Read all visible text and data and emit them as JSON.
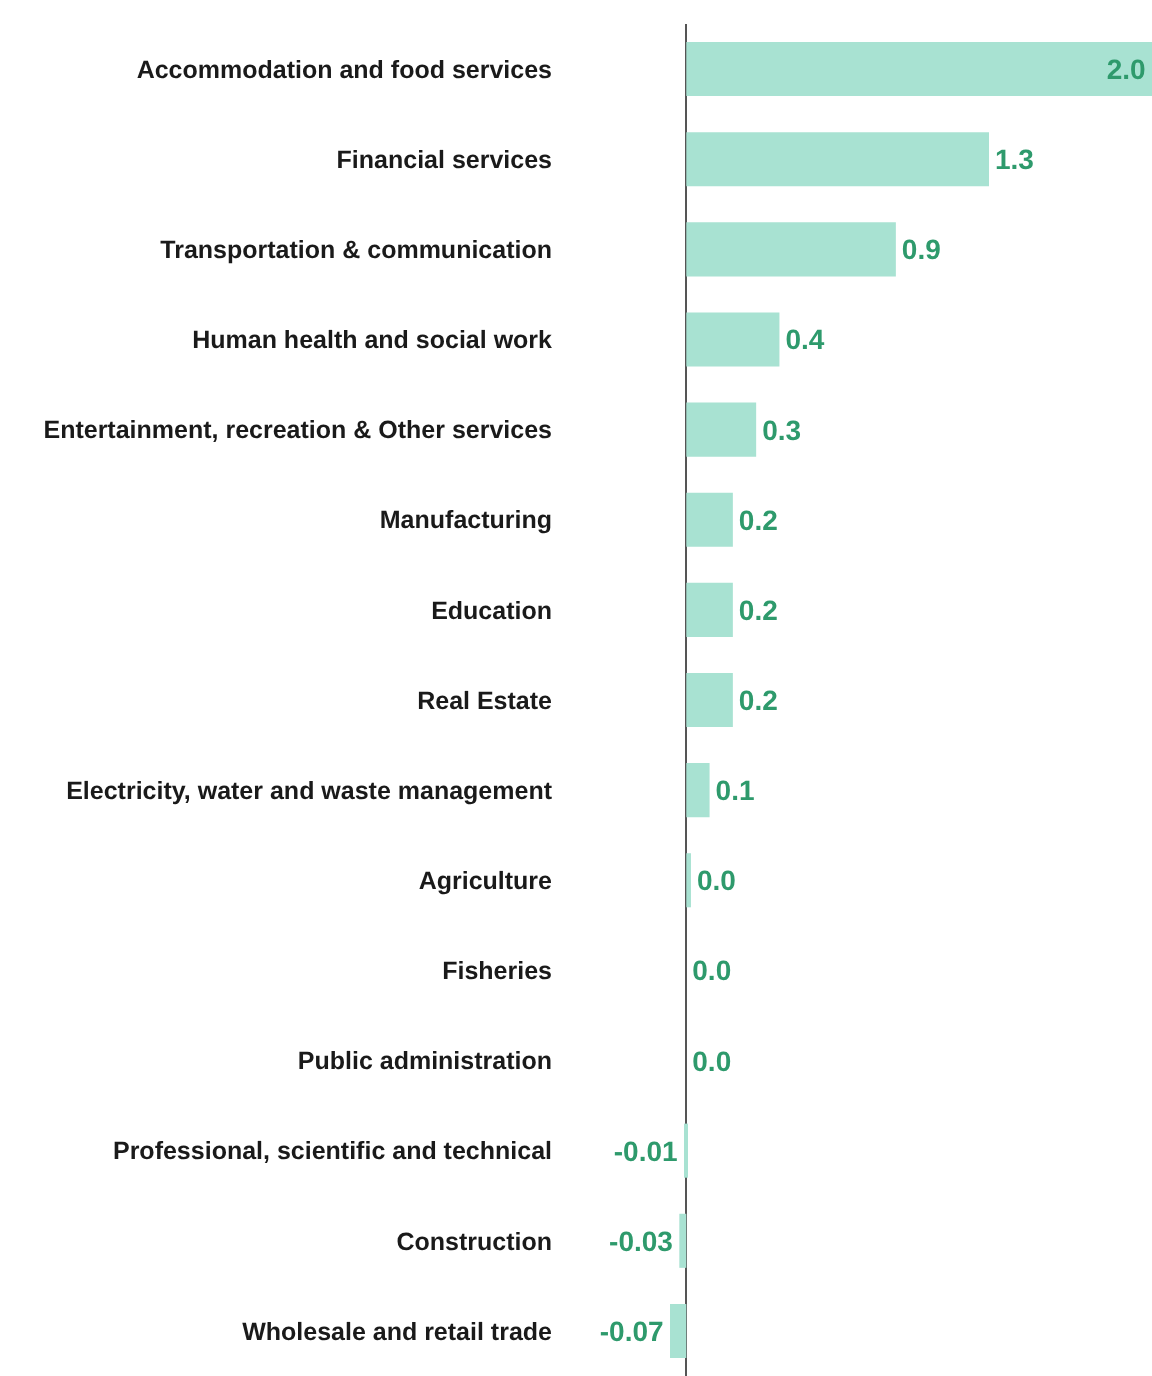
{
  "chart_data": {
    "type": "bar",
    "orientation": "horizontal",
    "relative": false,
    "categories": [
      "Accommodation and food services",
      "Financial services",
      "Transportation & communication",
      "Human health and social work",
      "Entertainment, recreation & Other services",
      "Manufacturing",
      "Education",
      "Real Estate",
      "Electricity, water and waste management",
      "Agriculture",
      "Fisheries",
      "Public administration",
      "Professional, scientific and technical",
      "Construction",
      "Wholesale and retail trade"
    ],
    "values": [
      2.0,
      1.3,
      0.9,
      0.4,
      0.3,
      0.2,
      0.2,
      0.2,
      0.1,
      0.02,
      0,
      0,
      -0.01,
      -0.03,
      -0.07
    ],
    "value_labels": [
      "2.0",
      "1.3",
      "0.9",
      "0.4",
      "0.3",
      "0.2",
      "0.2",
      "0.2",
      "0.1",
      "0.0",
      "0.0",
      "0.0",
      "-0.01",
      "-0.03",
      "-0.07"
    ],
    "color": "#a8e2d2",
    "xlim": [
      -0.07,
      2.0
    ],
    "tick_labels": "y"
  }
}
